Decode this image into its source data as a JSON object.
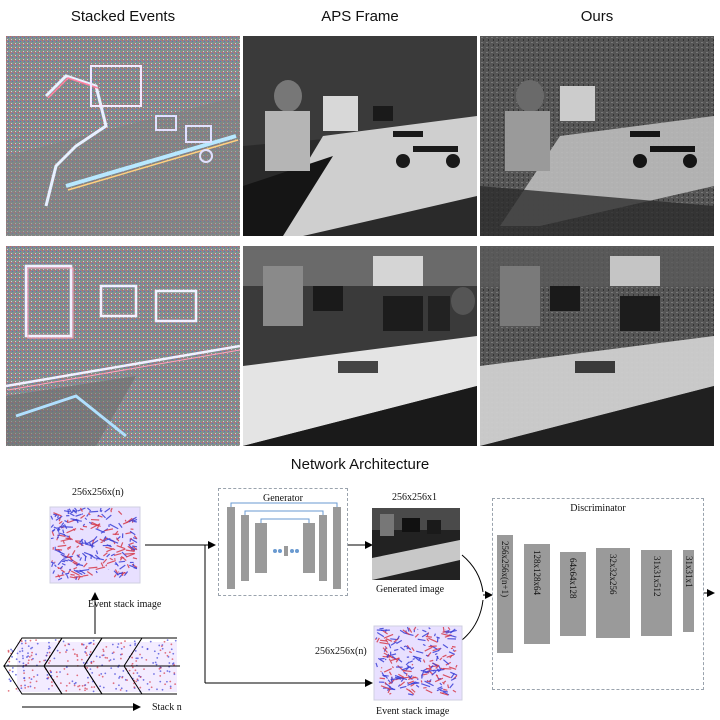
{
  "columns": {
    "stacked_events": "Stacked Events",
    "aps_frame": "APS Frame",
    "ours": "Ours"
  },
  "section_title": "Network Architecture",
  "diagram": {
    "input_dims": "256x256x(n)",
    "event_stack_caption": "Event stack image",
    "stack_caption": "Stack n",
    "generator_title": "Generator",
    "generated_dims": "256x256x1",
    "generated_caption": "Generated image",
    "second_input_dims": "256x256x(n)",
    "second_caption": "Event stack image",
    "discriminator_title": "Discriminator",
    "discriminator_layers": [
      "256x256x(n+1)",
      "128x128x64",
      "64x64x128",
      "32x32x256",
      "31x31x512",
      "31x31x1"
    ]
  },
  "colors": {
    "event_red": "#d63a4a",
    "event_blue": "#3a3fd6",
    "layer_gray": "#9a9a9a",
    "dashed_border": "#9aa3ad"
  }
}
